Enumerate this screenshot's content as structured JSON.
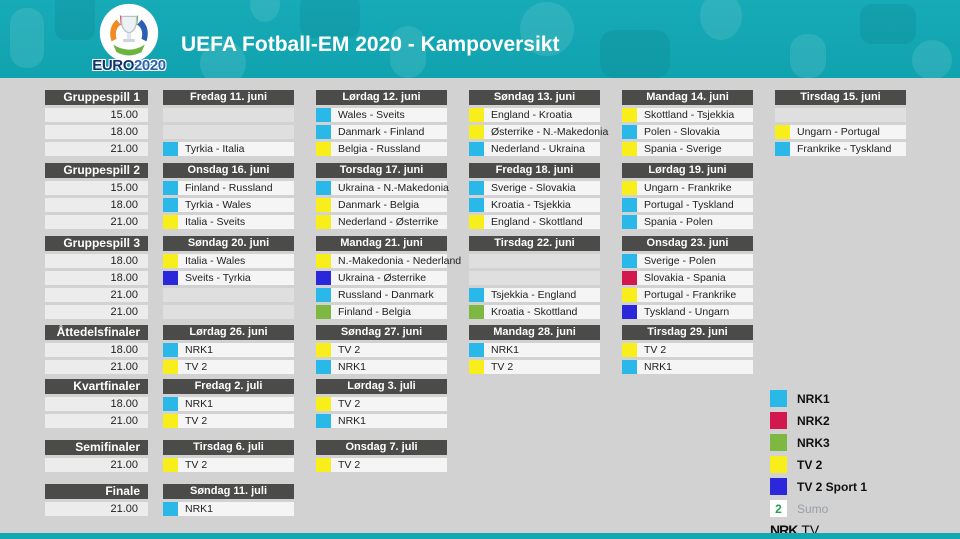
{
  "header": {
    "title": "UEFA Fotball-EM 2020 - Kampoversikt",
    "logo_euro": "EURO",
    "logo_year": "2020"
  },
  "colors": {
    "banner_teal": "#13a7b3",
    "header_dark": "#4b4b49",
    "background_gray": "#d2d2d2"
  },
  "channels": {
    "nrk1": "#29b8e8",
    "nrk2": "#d2184f",
    "nrk3": "#7cb842",
    "tv2": "#f7ee1b",
    "tv2sport1": "#2b28dc",
    "sumo_green": "#21a24b"
  },
  "bands": [
    {
      "label": "Gruppespill 1",
      "times": [
        "15.00",
        "18.00",
        "21.00"
      ],
      "days": [
        {
          "date": "Fredag 11. juni",
          "slots": [
            null,
            null,
            {
              "ch": "nrk1",
              "text": "Tyrkia - Italia"
            }
          ]
        },
        {
          "date": "Lørdag 12. juni",
          "slots": [
            {
              "ch": "nrk1",
              "text": "Wales - Sveits"
            },
            {
              "ch": "nrk1",
              "text": "Danmark - Finland"
            },
            {
              "ch": "tv2",
              "text": "Belgia - Russland"
            }
          ]
        },
        {
          "date": "Søndag 13. juni",
          "slots": [
            {
              "ch": "tv2",
              "text": "England - Kroatia"
            },
            {
              "ch": "tv2",
              "text": "Østerrike - N.-Makedonia"
            },
            {
              "ch": "nrk1",
              "text": "Nederland - Ukraina"
            }
          ]
        },
        {
          "date": "Mandag 14. juni",
          "slots": [
            {
              "ch": "tv2",
              "text": "Skottland - Tsjekkia"
            },
            {
              "ch": "nrk1",
              "text": "Polen - Slovakia"
            },
            {
              "ch": "tv2",
              "text": "Spania - Sverige"
            }
          ]
        },
        {
          "date": "Tirsdag 15. juni",
          "slots": [
            null,
            {
              "ch": "tv2",
              "text": "Ungarn - Portugal"
            },
            {
              "ch": "nrk1",
              "text": "Frankrike - Tyskland"
            }
          ]
        }
      ]
    },
    {
      "label": "Gruppespill 2",
      "times": [
        "15.00",
        "18.00",
        "21.00"
      ],
      "days": [
        {
          "date": "Onsdag 16. juni",
          "slots": [
            {
              "ch": "nrk1",
              "text": "Finland - Russland"
            },
            {
              "ch": "nrk1",
              "text": "Tyrkia - Wales"
            },
            {
              "ch": "tv2",
              "text": "Italia - Sveits"
            }
          ]
        },
        {
          "date": "Torsdag 17. juni",
          "slots": [
            {
              "ch": "nrk1",
              "text": "Ukraina - N.-Makedonia"
            },
            {
              "ch": "tv2",
              "text": "Danmark - Belgia"
            },
            {
              "ch": "tv2",
              "text": "Nederland - Østerrike"
            }
          ]
        },
        {
          "date": "Fredag 18. juni",
          "slots": [
            {
              "ch": "nrk1",
              "text": "Sverige - Slovakia"
            },
            {
              "ch": "nrk1",
              "text": "Kroatia - Tsjekkia"
            },
            {
              "ch": "tv2",
              "text": "England - Skottland"
            }
          ]
        },
        {
          "date": "Lørdag 19. juni",
          "slots": [
            {
              "ch": "tv2",
              "text": "Ungarn - Frankrike"
            },
            {
              "ch": "nrk1",
              "text": "Portugal - Tyskland"
            },
            {
              "ch": "nrk1",
              "text": "Spania - Polen"
            }
          ]
        }
      ]
    },
    {
      "label": "Gruppespill 3",
      "times": [
        "18.00",
        "18.00",
        "21.00",
        "21.00"
      ],
      "days": [
        {
          "date": "Søndag 20. juni",
          "slots": [
            {
              "ch": "tv2",
              "text": "Italia - Wales"
            },
            {
              "ch": "tv2sport1",
              "text": "Sveits - Tyrkia"
            },
            null,
            null
          ]
        },
        {
          "date": "Mandag 21. juni",
          "slots": [
            {
              "ch": "tv2",
              "text": "N.-Makedonia - Nederland"
            },
            {
              "ch": "tv2sport1",
              "text": "Ukraina - Østerrike"
            },
            {
              "ch": "nrk1",
              "text": "Russland - Danmark"
            },
            {
              "ch": "nrk3",
              "text": "Finland - Belgia"
            }
          ]
        },
        {
          "date": "Tirsdag 22. juni",
          "slots": [
            null,
            null,
            {
              "ch": "nrk1",
              "text": "Tsjekkia - England"
            },
            {
              "ch": "nrk3",
              "text": "Kroatia - Skottland"
            }
          ]
        },
        {
          "date": "Onsdag 23. juni",
          "slots": [
            {
              "ch": "nrk1",
              "text": "Sverige - Polen"
            },
            {
              "ch": "nrk2",
              "text": "Slovakia - Spania"
            },
            {
              "ch": "tv2",
              "text": "Portugal - Frankrike"
            },
            {
              "ch": "tv2sport1",
              "text": "Tyskland - Ungarn"
            }
          ]
        }
      ]
    },
    {
      "label": "Åttedelsfinaler",
      "times": [
        "18.00",
        "21.00"
      ],
      "days": [
        {
          "date": "Lørdag 26. juni",
          "slots": [
            {
              "ch": "nrk1",
              "text": "NRK1"
            },
            {
              "ch": "tv2",
              "text": "TV 2"
            }
          ]
        },
        {
          "date": "Søndag 27. juni",
          "slots": [
            {
              "ch": "tv2",
              "text": "TV 2"
            },
            {
              "ch": "nrk1",
              "text": "NRK1"
            }
          ]
        },
        {
          "date": "Mandag 28. juni",
          "slots": [
            {
              "ch": "nrk1",
              "text": "NRK1"
            },
            {
              "ch": "tv2",
              "text": "TV 2"
            }
          ]
        },
        {
          "date": "Tirsdag 29. juni",
          "slots": [
            {
              "ch": "tv2",
              "text": "TV 2"
            },
            {
              "ch": "nrk1",
              "text": "NRK1"
            }
          ]
        }
      ]
    },
    {
      "label": "Kvartfinaler",
      "times": [
        "18.00",
        "21.00"
      ],
      "days": [
        {
          "date": "Fredag 2. juli",
          "slots": [
            {
              "ch": "nrk1",
              "text": "NRK1"
            },
            {
              "ch": "tv2",
              "text": "TV 2"
            }
          ]
        },
        {
          "date": "Lørdag 3. juli",
          "slots": [
            {
              "ch": "tv2",
              "text": "TV 2"
            },
            {
              "ch": "nrk1",
              "text": "NRK1"
            }
          ]
        }
      ]
    },
    {
      "label": "Semifinaler",
      "times": [
        "21.00"
      ],
      "days": [
        {
          "date": "Tirsdag 6. juli",
          "slots": [
            {
              "ch": "tv2",
              "text": "TV 2"
            }
          ]
        },
        {
          "date": "Onsdag 7. juli",
          "slots": [
            {
              "ch": "tv2",
              "text": "TV 2"
            }
          ]
        }
      ]
    },
    {
      "label": "Finale",
      "times": [
        "21.00"
      ],
      "days": [
        {
          "date": "Søndag 11. juli",
          "slots": [
            {
              "ch": "nrk1",
              "text": "NRK1"
            }
          ]
        }
      ]
    }
  ],
  "legend": {
    "items": [
      {
        "ch": "nrk1",
        "label": "NRK1"
      },
      {
        "ch": "nrk2",
        "label": "NRK2"
      },
      {
        "ch": "nrk3",
        "label": "NRK3"
      },
      {
        "ch": "tv2",
        "label": "TV 2"
      },
      {
        "ch": "tv2sport1",
        "label": "TV 2 Sport 1"
      }
    ],
    "sumo": {
      "logo": "2",
      "label": "Sumo"
    },
    "nrktv": {
      "nrk": "NRK",
      "tv": "TV"
    }
  }
}
